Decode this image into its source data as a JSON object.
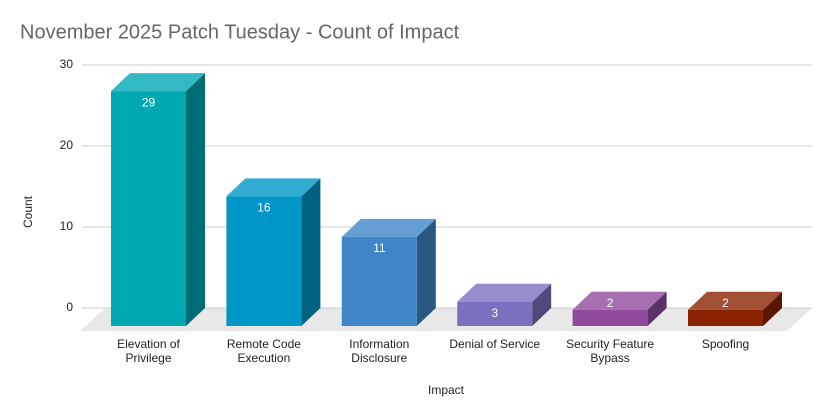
{
  "chart_data": {
    "type": "bar3d",
    "title": "November 2025 Patch Tuesday - Count of Impact",
    "x_label": "Impact",
    "y_label": "Count",
    "categories": [
      "Elevation of Privilege",
      "Remote Code Execution",
      "Information Disclosure",
      "Denial of Service",
      "Security Feature Bypass",
      "Spoofing"
    ],
    "values": [
      29,
      16,
      11,
      3,
      2,
      2
    ],
    "colors": [
      "#00a8b2",
      "#0097c8",
      "#3e86c8",
      "#7a70c0",
      "#8e4b9c",
      "#8a2400"
    ],
    "ylim": [
      0,
      30
    ],
    "yticks": [
      0,
      10,
      20,
      30
    ],
    "grid": true
  }
}
